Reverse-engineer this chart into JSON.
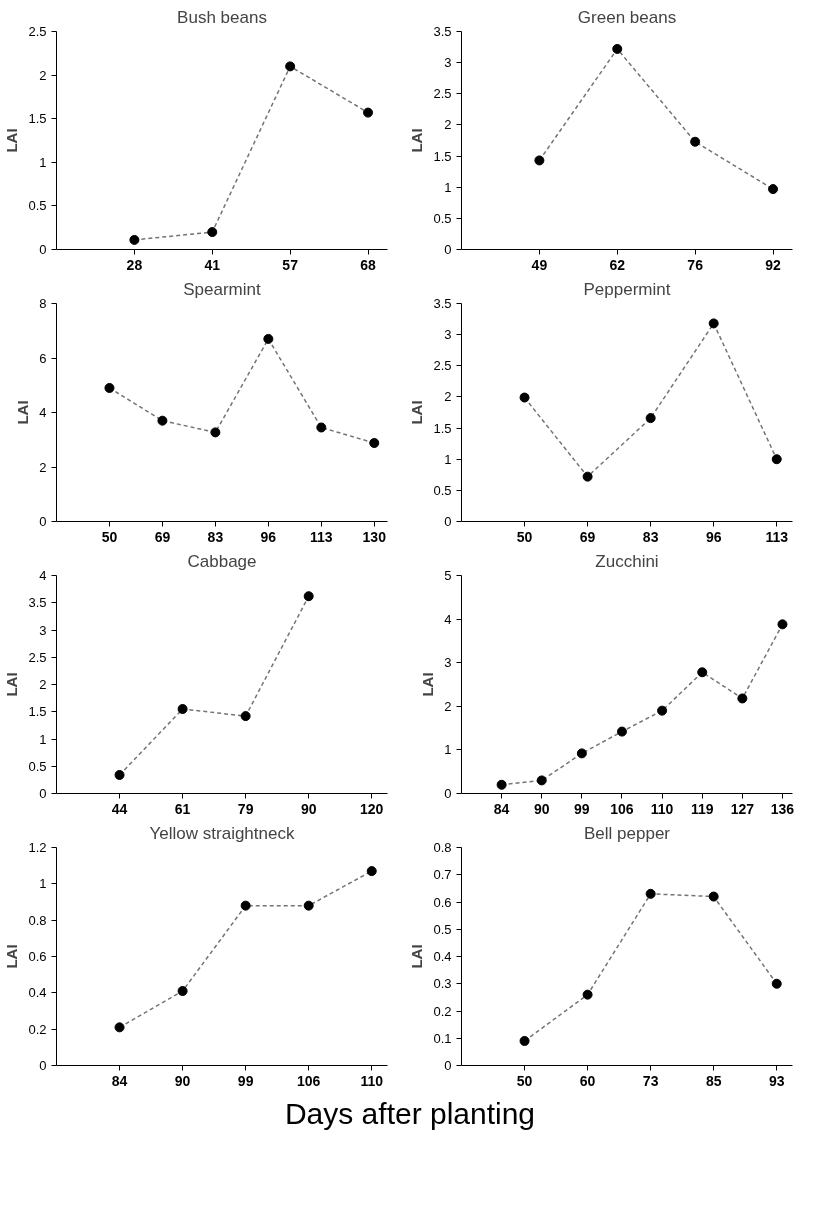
{
  "chart_data": [
    {
      "type": "line",
      "title": "Bush beans",
      "ylabel": "LAI",
      "categories": [
        "28",
        "41",
        "57",
        "68"
      ],
      "series": [
        {
          "color": "#000000",
          "values": [
            0.11,
            0.2,
            2.1,
            1.57
          ]
        }
      ],
      "ylim": [
        0,
        2.5
      ],
      "yticks": [
        0,
        0.5,
        1,
        1.5,
        2,
        2.5
      ],
      "marker": "circle",
      "line_style": "dashed"
    },
    {
      "type": "line",
      "title": "Green beans",
      "ylabel": "LAI",
      "categories": [
        "49",
        "62",
        "76",
        "92"
      ],
      "series": [
        {
          "color": "#000000",
          "values": [
            1.43,
            3.22,
            1.73,
            0.97
          ]
        }
      ],
      "ylim": [
        0,
        3.5
      ],
      "yticks": [
        0,
        0.5,
        1,
        1.5,
        2,
        2.5,
        3,
        3.5
      ],
      "marker": "circle",
      "line_style": "dashed"
    },
    {
      "type": "line",
      "title": "Spearmint",
      "ylabel": "LAI",
      "categories": [
        "50",
        "69",
        "83",
        "96",
        "113",
        "130"
      ],
      "series": [
        {
          "color": "#000000",
          "values": [
            4.9,
            3.7,
            3.27,
            6.7,
            3.45,
            2.88
          ]
        }
      ],
      "ylim": [
        0,
        8
      ],
      "yticks": [
        0,
        2,
        4,
        6,
        8
      ],
      "marker": "circle",
      "line_style": "dashed"
    },
    {
      "type": "line",
      "title": "Peppermint",
      "ylabel": "LAI",
      "categories": [
        "50",
        "69",
        "83",
        "96",
        "113"
      ],
      "series": [
        {
          "color": "#000000",
          "values": [
            1.99,
            0.72,
            1.66,
            3.18,
            1.0
          ]
        }
      ],
      "ylim": [
        0,
        3.5
      ],
      "yticks": [
        0,
        0.5,
        1,
        1.5,
        2,
        2.5,
        3,
        3.5
      ],
      "marker": "circle",
      "line_style": "dashed"
    },
    {
      "type": "line",
      "title": "Cabbage",
      "ylabel": "LAI",
      "categories": [
        "44",
        "61",
        "79",
        "90",
        "120"
      ],
      "series": [
        {
          "color": "#000000",
          "values": [
            0.34,
            1.55,
            1.42,
            3.62,
            null
          ]
        }
      ],
      "ylim": [
        0,
        4
      ],
      "yticks": [
        0,
        0.5,
        1,
        1.5,
        2,
        2.5,
        3,
        3.5,
        4
      ],
      "marker": "circle",
      "line_style": "dashed"
    },
    {
      "type": "line",
      "title": "Zucchini",
      "ylabel": "LAI",
      "categories": [
        "84",
        "90",
        "99",
        "106",
        "110",
        "119",
        "127",
        "136"
      ],
      "series": [
        {
          "color": "#000000",
          "values": [
            0.2,
            0.3,
            0.92,
            1.42,
            1.9,
            2.78,
            2.18,
            3.88
          ]
        }
      ],
      "ylim": [
        0,
        5
      ],
      "yticks": [
        0,
        1,
        2,
        3,
        4,
        5
      ],
      "marker": "circle",
      "line_style": "dashed"
    },
    {
      "type": "line",
      "title": "Yellow straightneck",
      "ylabel": "LAI",
      "categories": [
        "84",
        "90",
        "99",
        "106",
        "110"
      ],
      "series": [
        {
          "color": "#000000",
          "values": [
            0.21,
            0.41,
            0.88,
            0.88,
            1.07
          ]
        }
      ],
      "ylim": [
        0,
        1.2
      ],
      "yticks": [
        0,
        0.2,
        0.4,
        0.6,
        0.8,
        1,
        1.2
      ],
      "marker": "circle",
      "line_style": "dashed"
    },
    {
      "type": "line",
      "title": "Bell pepper",
      "ylabel": "LAI",
      "categories": [
        "50",
        "60",
        "73",
        "85",
        "93"
      ],
      "series": [
        {
          "color": "#000000",
          "values": [
            0.09,
            0.26,
            0.63,
            0.62,
            0.3
          ]
        }
      ],
      "ylim": [
        0,
        0.8
      ],
      "yticks": [
        0,
        0.1,
        0.2,
        0.3,
        0.4,
        0.5,
        0.6,
        0.7,
        0.8
      ],
      "marker": "circle",
      "line_style": "dashed",
      "annotations": [
        "Days after planting"
      ]
    }
  ]
}
